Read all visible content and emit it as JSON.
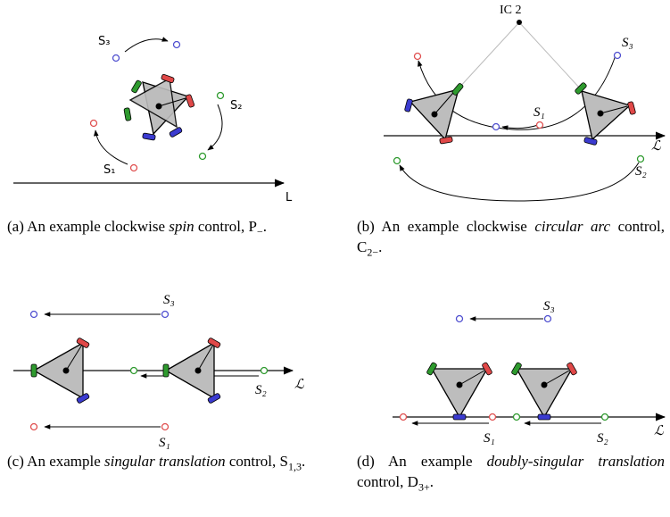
{
  "panels": [
    {
      "labels": [
        "S₃",
        "S₂",
        "S₁",
        "L"
      ],
      "caption": [
        {
          "text": "(a) An example clockwise "
        },
        {
          "text": "spin",
          "italic": true
        },
        {
          "text": " control, P"
        },
        {
          "text": "−",
          "sub": true
        },
        {
          "text": "."
        }
      ]
    },
    {
      "labels": [
        "IC 2",
        "S₃",
        "S₁",
        "ℒ",
        "S₂"
      ],
      "caption": [
        {
          "text": "(b) An example clockwise "
        },
        {
          "text": "circu­lar arc",
          "italic": true
        },
        {
          "text": " control, C"
        },
        {
          "text": "2−",
          "sub": true
        },
        {
          "text": "."
        }
      ]
    },
    {
      "labels": [
        "S₃",
        "S₂",
        "ℒ",
        "S₁"
      ],
      "caption": [
        {
          "text": "(c) An example "
        },
        {
          "text": "singular transla­tion",
          "italic": true
        },
        {
          "text": " control, S"
        },
        {
          "text": "1,3",
          "sub": true
        },
        {
          "text": "."
        }
      ]
    },
    {
      "labels": [
        "S₃",
        "S₁",
        "S₂",
        "ℒ"
      ],
      "caption": [
        {
          "text": "(d) An example "
        },
        {
          "text": "doubly-singular translation",
          "italic": true
        },
        {
          "text": " control, D"
        },
        {
          "text": "3+",
          "sub": true
        },
        {
          "text": "."
        }
      ]
    }
  ]
}
